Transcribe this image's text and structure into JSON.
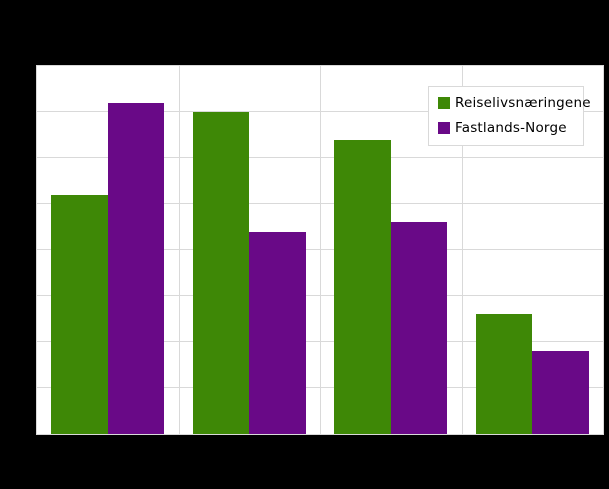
{
  "canvas": {
    "background": "#000000"
  },
  "plot": {
    "background": "#ffffff",
    "border_color": "#d9d9d9",
    "gridline_color": "#d9d9d9"
  },
  "chart_data": {
    "type": "bar",
    "title": "",
    "categories": [
      "",
      "",
      "",
      ""
    ],
    "series": [
      {
        "name": "Reiselivsnæringene",
        "color": "#3e8806",
        "values": [
          2.6,
          3.5,
          3.2,
          1.3
        ]
      },
      {
        "name": "Fastlands-Norge",
        "color": "#690987",
        "values": [
          3.6,
          2.2,
          2.3,
          0.9
        ]
      }
    ],
    "ylim": [
      0,
      4
    ],
    "y_gridline_step": 0.5,
    "x_gridline_sections": 4,
    "grid": true,
    "x_tick_labels_visible": false,
    "y_tick_labels_visible": false,
    "legend_position": "top-right"
  },
  "legend": {
    "items": [
      {
        "label": "Reiselivsnæringene"
      },
      {
        "label": "Fastlands-Norge"
      }
    ]
  }
}
